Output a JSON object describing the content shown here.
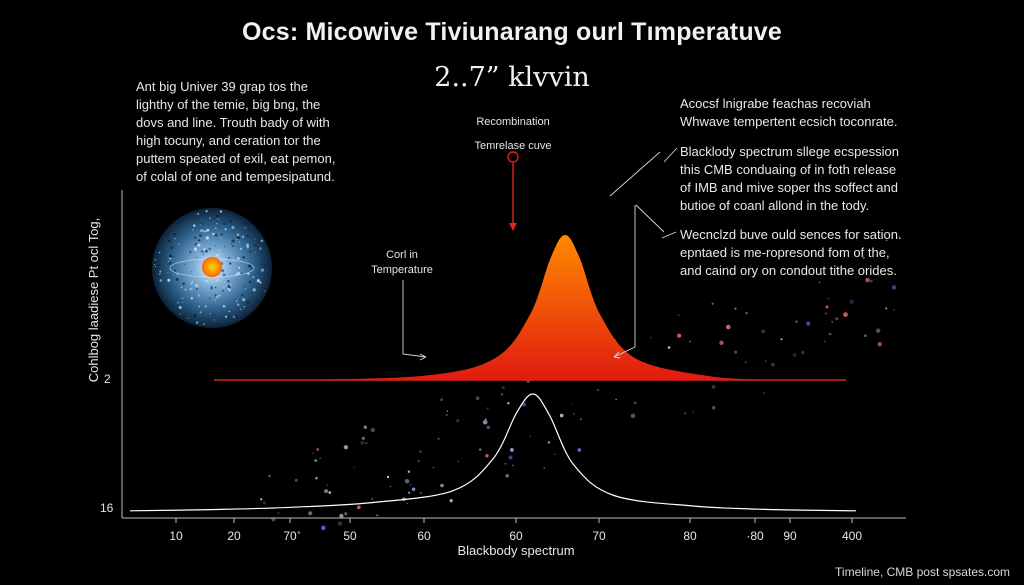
{
  "header": {
    "title": "Ocs: Micowive Tiviunarang ourl Tımperatuve",
    "subtitle": "2..7” klvvin"
  },
  "annotations": {
    "top_left": [
      "Ant big Univer 39 grap tos the",
      "lighthy of the temie, big bng, the",
      "dovs and line. Trouth bady of with",
      "high tocuny, and ceration tor the",
      "puttem speated of exil, eat pemon,",
      "of colal of one and tempesipatund."
    ],
    "top_right": [
      "Acocsf lnigrabe feachas recoviah",
      "Whwave tempertent ecsich toconrate."
    ],
    "middle_right": [
      "Blacklody spectrum sllege ecspession",
      "this CMB conduaing of in foth release",
      "of IMB and mive soper ths soffect and",
      "butioe of coanl allond in the tody."
    ],
    "lower_right": [
      "Wecnclzd buve ould sences for sation.",
      "epntaed is me-ropresond fom of the,",
      "and caind ory on condout tithe orides."
    ],
    "recombination_label": [
      "Recombination",
      "Temrelase cuve"
    ],
    "cool_label": [
      "Corl in",
      "Temperature"
    ]
  },
  "footer": {
    "text": "Timeline, CMB post spsates.com"
  },
  "colors": {
    "background": "#000000",
    "peak_gradient_top": "#ff8a00",
    "peak_gradient_bottom": "#e01a10",
    "baseline_line": "#e0231b",
    "marker": "#e0231b",
    "lower_curve": "#ffffff",
    "text": "#f2f2f2"
  },
  "icons": {
    "cmb_sphere": "cmb-sphere-icon",
    "recombination_marker": "ring-marker-icon"
  },
  "chart_data": [
    {
      "type": "area",
      "title": "Ocs: Micowive Tiviunarang ourl Tımperatuve",
      "ylabel": "Cohlbog laadiese Pt ocl Tog,",
      "y_tick_labels": [
        "2"
      ],
      "description_series": [
        {
          "color": "#ff6a00",
          "x": [
            10,
            20,
            40,
            50,
            55,
            58,
            60,
            62,
            65,
            70,
            80,
            90,
            100
          ],
          "y": [
            0.0,
            0.0,
            0.03,
            0.15,
            0.45,
            0.85,
            1.0,
            0.85,
            0.45,
            0.15,
            0.03,
            0.0,
            0.0
          ]
        }
      ]
    },
    {
      "type": "line",
      "xlabel": "Blackbody spectrum",
      "x_tick_labels": [
        "10",
        "20",
        "70",
        "50",
        "60",
        "60",
        "70",
        "80",
        "·80",
        "90",
        "400"
      ],
      "y_tick_labels": [
        "16"
      ],
      "series": [
        {
          "color": "#ffffff",
          "x": [
            10,
            20,
            30,
            40,
            50,
            55,
            58,
            60,
            62,
            65,
            70,
            80,
            90,
            100
          ],
          "y": [
            0.01,
            0.02,
            0.04,
            0.08,
            0.18,
            0.45,
            0.85,
            1.0,
            0.82,
            0.4,
            0.14,
            0.05,
            0.02,
            0.01
          ]
        }
      ]
    }
  ]
}
